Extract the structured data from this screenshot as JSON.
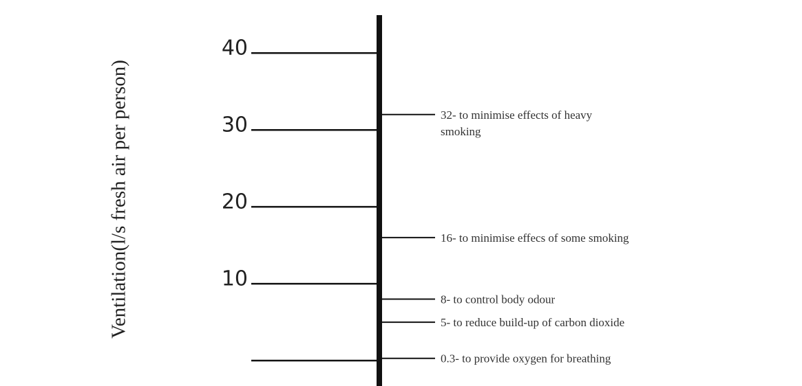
{
  "chart_data": {
    "type": "scale",
    "y_label": "Ventilation(l/s fresh air per person)",
    "ylim": [
      -3.3,
      46.9
    ],
    "yticks": [
      {
        "value": 0,
        "label": null
      },
      10,
      20,
      30,
      40
    ],
    "annotations": [
      {
        "value": 32,
        "lines": [
          "32- to minimise effects of heavy",
          "smoking"
        ]
      },
      {
        "value": 16,
        "lines": [
          "16- to minimise effecs of some smoking"
        ]
      },
      {
        "value": 8,
        "lines": [
          "8- to control body odour"
        ]
      },
      {
        "value": 5,
        "lines": [
          "5- to reduce build-up of carbon dioxide"
        ]
      },
      {
        "value": 0.3,
        "lines": [
          "0.3- to provide oxygen for breathing"
        ]
      }
    ],
    "color": "#111111"
  }
}
